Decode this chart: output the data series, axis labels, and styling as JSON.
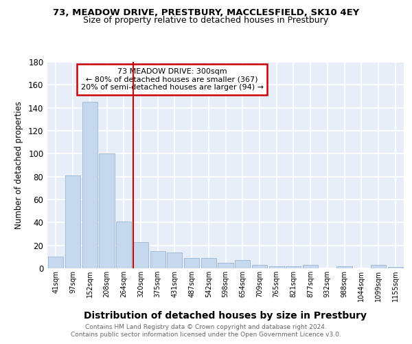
{
  "title1": "73, MEADOW DRIVE, PRESTBURY, MACCLESFIELD, SK10 4EY",
  "title2": "Size of property relative to detached houses in Prestbury",
  "xlabel": "Distribution of detached houses by size in Prestbury",
  "ylabel": "Number of detached properties",
  "categories": [
    "41sqm",
    "97sqm",
    "152sqm",
    "208sqm",
    "264sqm",
    "320sqm",
    "375sqm",
    "431sqm",
    "487sqm",
    "542sqm",
    "598sqm",
    "654sqm",
    "709sqm",
    "765sqm",
    "821sqm",
    "877sqm",
    "932sqm",
    "988sqm",
    "1044sqm",
    "1099sqm",
    "1155sqm"
  ],
  "values": [
    10,
    81,
    145,
    100,
    41,
    23,
    15,
    14,
    9,
    9,
    5,
    7,
    3,
    2,
    2,
    3,
    0,
    2,
    0,
    3,
    1
  ],
  "bar_color": "#c5d8ee",
  "bar_edge_color": "#a0bcd8",
  "annotation_line1": "73 MEADOW DRIVE: 300sqm",
  "annotation_line2": "← 80% of detached houses are smaller (367)",
  "annotation_line3": "20% of semi-detached houses are larger (94) →",
  "vline_color": "#cc0000",
  "annotation_box_edge": "#cc0000",
  "footer1": "Contains HM Land Registry data © Crown copyright and database right 2024.",
  "footer2": "Contains public sector information licensed under the Open Government Licence v3.0.",
  "ylim": [
    0,
    180
  ],
  "yticks": [
    0,
    20,
    40,
    60,
    80,
    100,
    120,
    140,
    160,
    180
  ],
  "bg_color": "#e8eef8",
  "fig_color": "#ffffff",
  "grid_color": "#ffffff"
}
